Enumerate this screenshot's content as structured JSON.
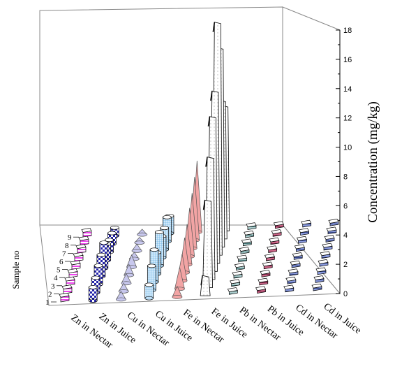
{
  "chart_data": {
    "type": "bar",
    "chart_style": "3d",
    "ylabel": "Concentration (mg/kg)",
    "depth_label": "Sample no",
    "ylim": [
      0,
      18
    ],
    "yticks": [
      0,
      2,
      4,
      6,
      8,
      10,
      12,
      14,
      16,
      18
    ],
    "samples": [
      1,
      2,
      3,
      4,
      5,
      6,
      7,
      8,
      9
    ],
    "series": [
      {
        "name": "Zn in Nectar",
        "shape": "box",
        "color": "#ee44ee",
        "values": [
          0.35,
          0.35,
          0.35,
          0.35,
          0.35,
          0.35,
          0.35,
          0.35,
          0.35
        ]
      },
      {
        "name": "Zn in Juice",
        "shape": "cylinder",
        "color": "#2222aa",
        "values": [
          1.0,
          1.1,
          1.4,
          1.6,
          1.9,
          1.2,
          0.9,
          0.8,
          0.6
        ]
      },
      {
        "name": "Cu in Nectar",
        "shape": "cone",
        "color": "#c8c8ee",
        "values": [
          0.6,
          0.6,
          0.7,
          0.8,
          0.9,
          0.5,
          0.5,
          0.4,
          0.4
        ]
      },
      {
        "name": "Cu in Juice",
        "shape": "cylinder",
        "color": "#88c8ee",
        "values": [
          1.0,
          1.8,
          2.4,
          1.6,
          2.5,
          1.6,
          1.6,
          1.8,
          1.3
        ]
      },
      {
        "name": "Fe in Nectar",
        "shape": "cone",
        "color": "#f0a0a0",
        "values": [
          0.8,
          1.6,
          2.0,
          2.6,
          3.0,
          3.6,
          4.1,
          4.7,
          5.3
        ]
      },
      {
        "name": "Fe in Juice",
        "shape": "spike",
        "color": "#ffffff",
        "values": [
          1.5,
          6.5,
          9.1,
          11.5,
          12.8,
          17.3,
          14.8,
          10.3,
          9.3
        ]
      },
      {
        "name": "Pb in Nectar",
        "shape": "box",
        "color": "#558888",
        "values": [
          0.2,
          0.2,
          0.2,
          0.2,
          0.2,
          0.2,
          0.2,
          0.2,
          0.2
        ]
      },
      {
        "name": "Pb in Juice",
        "shape": "box",
        "color": "#993355",
        "values": [
          0.2,
          0.2,
          0.2,
          0.2,
          0.2,
          0.2,
          0.2,
          0.2,
          0.2
        ]
      },
      {
        "name": "Cd in Nectar",
        "shape": "box",
        "color": "#445599",
        "values": [
          0.2,
          0.2,
          0.2,
          0.2,
          0.2,
          0.2,
          0.2,
          0.2,
          0.2
        ]
      },
      {
        "name": "Cd in Juice",
        "shape": "box",
        "color": "#556699",
        "values": [
          0.2,
          0.2,
          0.2,
          0.2,
          0.2,
          0.2,
          0.2,
          0.2,
          0.2
        ]
      }
    ],
    "grid": false,
    "legend": "none"
  }
}
